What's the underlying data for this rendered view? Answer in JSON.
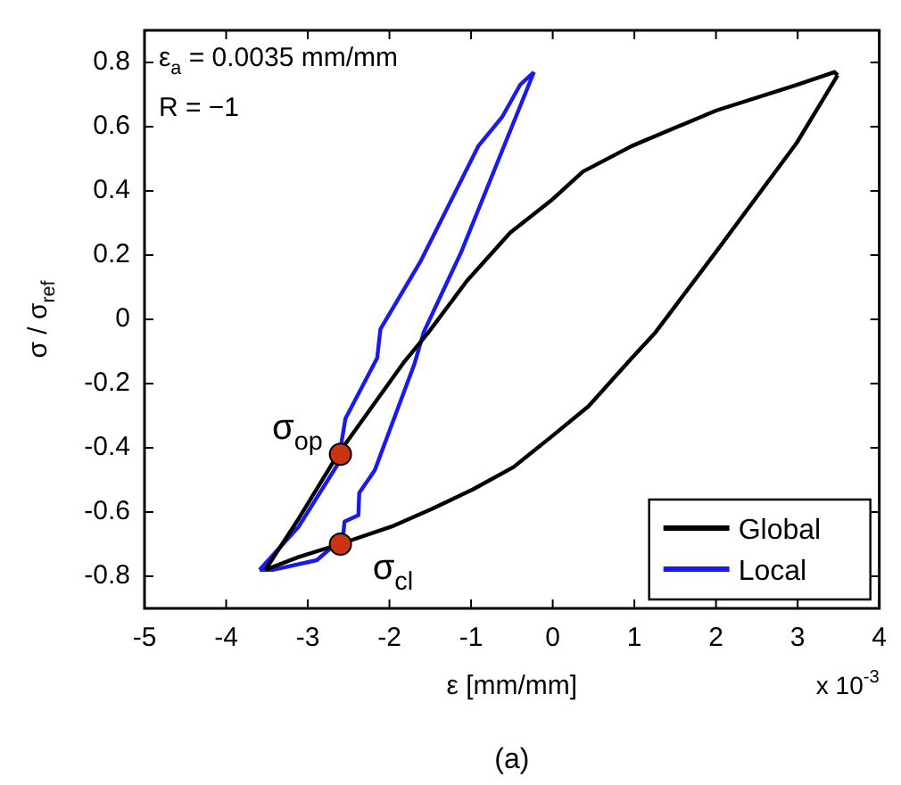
{
  "chart_data": {
    "type": "line",
    "xlabel": "ε [mm/mm]",
    "ylabel": "σ / σ$_{ref}$",
    "xlim": [
      -5,
      4
    ],
    "xticks": [
      -5,
      -4,
      -3,
      -2,
      -1,
      0,
      1,
      2,
      3,
      4
    ],
    "ylim": [
      -0.9,
      0.9
    ],
    "yticks": [
      -0.8,
      -0.6,
      -0.4,
      -0.2,
      0,
      0.2,
      0.4,
      0.6,
      0.8
    ],
    "grid": false,
    "legend": "bottom right",
    "marker": "none",
    "line_style": "solid",
    "series": [
      {
        "name": "Global",
        "color": "#000000",
        "x": [
          -3.52,
          -3.11,
          -2.63,
          -1.83,
          -1.52,
          -1.05,
          -0.52,
          -0.02,
          0.37,
          0.97,
          2.0,
          2.99,
          3.45,
          3.49
        ],
        "values": [
          -0.78,
          -0.62,
          -0.42,
          -0.136,
          -0.04,
          0.12,
          0.27,
          0.37,
          0.46,
          0.54,
          0.65,
          0.73,
          0.77,
          0.76
        ]
      },
      {
        "color": "#000000",
        "x": [
          -3.52,
          -3.11,
          -2.61,
          -1.97,
          -1.48,
          -0.98,
          -0.48,
          0.01,
          0.44,
          0.97,
          1.26,
          2.0,
          2.99,
          3.49
        ],
        "values": [
          -0.78,
          -0.74,
          -0.7,
          -0.645,
          -0.59,
          -0.53,
          -0.46,
          -0.36,
          -0.27,
          -0.12,
          -0.04,
          0.21,
          0.55,
          0.76
        ]
      },
      {
        "name": "Local",
        "color": "#1a1aee",
        "x": [
          -3.59,
          -3.11,
          -2.63,
          -2.54,
          -2.15,
          -2.11,
          -1.62,
          -0.91,
          -0.62,
          -0.4,
          -0.23
        ],
        "values": [
          -0.78,
          -0.645,
          -0.45,
          -0.31,
          -0.12,
          -0.03,
          0.18,
          0.54,
          0.63,
          0.73,
          0.77
        ]
      },
      {
        "color": "#1a1aee",
        "x": [
          -3.59,
          -3.43,
          -2.89,
          -2.57,
          -2.55,
          -2.38,
          -2.37,
          -2.18,
          -1.69,
          -1.58,
          -1.12,
          -0.23
        ],
        "values": [
          -0.78,
          -0.78,
          -0.75,
          -0.68,
          -0.63,
          -0.61,
          -0.54,
          -0.47,
          -0.136,
          -0.04,
          0.21,
          0.77
        ]
      },
      {
        "type": "scatter",
        "marker": "circle",
        "color": "#cc3311",
        "x": [
          -2.6,
          -2.6
        ],
        "values": [
          -0.42,
          -0.7
        ]
      }
    ],
    "annotations": [
      "ε$_{a}$ = 0.0035 mm/mm",
      "R = −1",
      "x 10$^{-3}$",
      "(a)",
      {
        "text": "σ$_{op}$",
        "x": -2.6,
        "y": -0.42
      },
      {
        "text": "σ$_{cl}$",
        "x": -2.6,
        "y": -0.7
      }
    ]
  }
}
